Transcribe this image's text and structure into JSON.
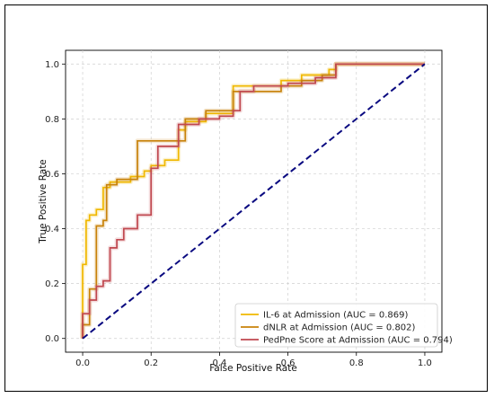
{
  "chart_data": {
    "type": "line",
    "title": "",
    "xlabel": "False Positive Rate",
    "ylabel": "True Positive Rate",
    "xlim": [
      -0.05,
      1.05
    ],
    "ylim": [
      -0.05,
      1.05
    ],
    "xticks": [
      "0.0",
      "0.2",
      "0.4",
      "0.6",
      "0.8",
      "1.0"
    ],
    "yticks": [
      "0.0",
      "0.2",
      "0.4",
      "0.6",
      "0.8",
      "1.0"
    ],
    "grid": true,
    "legend_position": "lower-right",
    "series": [
      {
        "name": "IL-6 at Admission (AUC = 0.869)",
        "color": "#f0b800",
        "x": [
          0,
          0,
          0.01,
          0.01,
          0.02,
          0.02,
          0.04,
          0.04,
          0.06,
          0.06,
          0.08,
          0.08,
          0.14,
          0.14,
          0.18,
          0.18,
          0.2,
          0.2,
          0.24,
          0.24,
          0.28,
          0.28,
          0.3,
          0.3,
          0.36,
          0.36,
          0.44,
          0.44,
          0.58,
          0.58,
          0.64,
          0.64,
          0.72,
          0.72,
          0.74,
          0.74,
          1.0
        ],
        "y": [
          0,
          0.27,
          0.27,
          0.43,
          0.43,
          0.45,
          0.45,
          0.47,
          0.47,
          0.55,
          0.55,
          0.57,
          0.57,
          0.59,
          0.59,
          0.61,
          0.61,
          0.63,
          0.63,
          0.65,
          0.65,
          0.76,
          0.76,
          0.79,
          0.79,
          0.82,
          0.82,
          0.92,
          0.92,
          0.94,
          0.94,
          0.96,
          0.96,
          0.98,
          0.98,
          1.0,
          1.0
        ]
      },
      {
        "name": "dNLR at Admission (AUC = 0.802)",
        "color": "#c8820a",
        "x": [
          0,
          0,
          0.02,
          0.02,
          0.04,
          0.04,
          0.06,
          0.06,
          0.07,
          0.07,
          0.1,
          0.1,
          0.16,
          0.16,
          0.3,
          0.3,
          0.36,
          0.36,
          0.44,
          0.44,
          0.58,
          0.58,
          0.64,
          0.64,
          0.7,
          0.7,
          0.74,
          0.74,
          1.0
        ],
        "y": [
          0,
          0.05,
          0.05,
          0.18,
          0.18,
          0.41,
          0.41,
          0.43,
          0.43,
          0.56,
          0.56,
          0.58,
          0.58,
          0.72,
          0.72,
          0.8,
          0.8,
          0.83,
          0.83,
          0.9,
          0.9,
          0.92,
          0.92,
          0.94,
          0.94,
          0.96,
          0.96,
          1.0,
          1.0
        ]
      },
      {
        "name": "PedPne Score at Admission (AUC = 0.794)",
        "color": "#c0474f",
        "x": [
          0,
          0,
          0.02,
          0.02,
          0.04,
          0.04,
          0.06,
          0.06,
          0.08,
          0.08,
          0.1,
          0.1,
          0.12,
          0.12,
          0.16,
          0.16,
          0.2,
          0.2,
          0.22,
          0.22,
          0.28,
          0.28,
          0.34,
          0.34,
          0.4,
          0.4,
          0.44,
          0.44,
          0.46,
          0.46,
          0.5,
          0.5,
          0.6,
          0.6,
          0.68,
          0.68,
          0.74,
          0.74,
          1.0
        ],
        "y": [
          0,
          0.09,
          0.09,
          0.14,
          0.14,
          0.19,
          0.19,
          0.21,
          0.21,
          0.33,
          0.33,
          0.36,
          0.36,
          0.4,
          0.4,
          0.45,
          0.45,
          0.62,
          0.62,
          0.7,
          0.7,
          0.78,
          0.78,
          0.8,
          0.8,
          0.81,
          0.81,
          0.83,
          0.83,
          0.9,
          0.9,
          0.92,
          0.92,
          0.93,
          0.93,
          0.95,
          0.95,
          1.0,
          1.0
        ]
      }
    ],
    "reference_line": {
      "x": [
        0,
        1
      ],
      "y": [
        0,
        1
      ],
      "color": "#0a0a80",
      "style": "dashed"
    }
  }
}
